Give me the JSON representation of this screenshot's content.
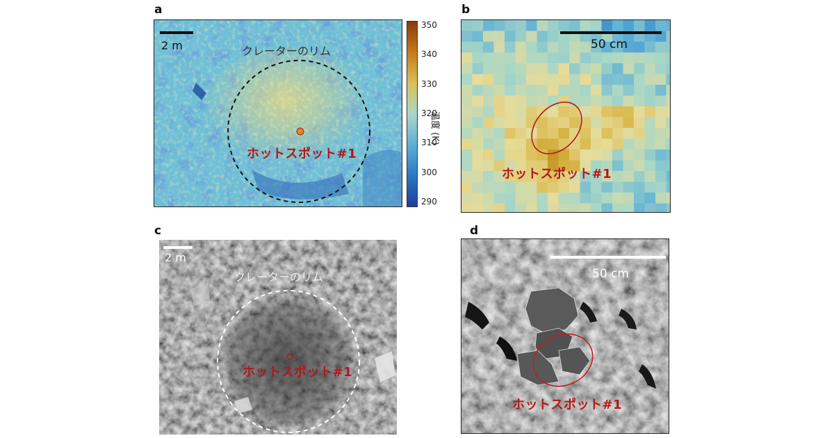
{
  "panels": {
    "a": {
      "letter": "a",
      "scale_label": "2 m",
      "rim_label": "クレーターのリム",
      "hotspot_label": "ホットスポット#1"
    },
    "b": {
      "letter": "b",
      "scale_label": "50 cm",
      "hotspot_label": "ホットスポット#1"
    },
    "c": {
      "letter": "c",
      "scale_label": "2 m",
      "rim_label": "クレーターのリム",
      "hotspot_label": "ホットスポット#1"
    },
    "d": {
      "letter": "d",
      "scale_label": "50 cm",
      "hotspot_label": "ホットスポット#1"
    }
  },
  "colorbar": {
    "label": "温度 (K)",
    "ticks": [
      "350",
      "340",
      "330",
      "320",
      "310",
      "300",
      "290"
    ],
    "colors": [
      "#8b3a0c",
      "#c77a17",
      "#d9c05a",
      "#a9d7c6",
      "#5fb0d6",
      "#2b78c2",
      "#1c3f9c"
    ]
  },
  "colors": {
    "hotspot": "#b01818",
    "scalebar_dark": "#111111",
    "scalebar_light": "#ffffff"
  }
}
